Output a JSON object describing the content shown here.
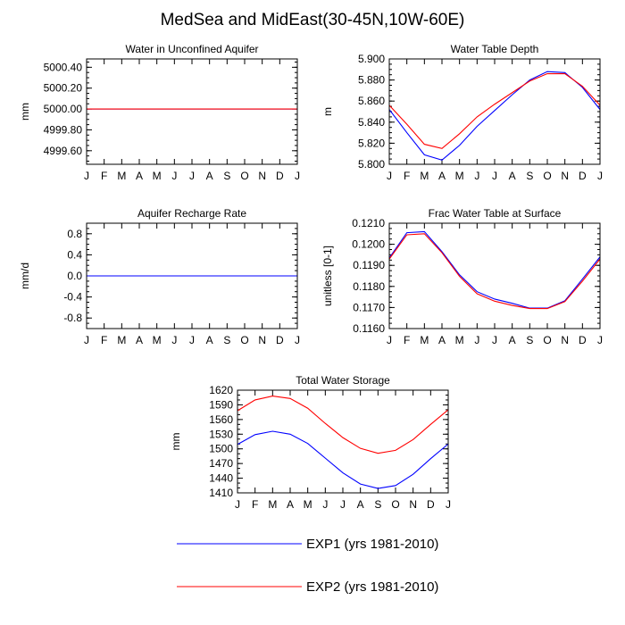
{
  "title": "MedSea and MidEast(30-45N,10W-60E)",
  "colors": {
    "exp1": "#0000ff",
    "exp2": "#ff0000"
  },
  "legend": [
    {
      "label": "EXP1 (yrs 1981-2010)",
      "color": "#0000ff"
    },
    {
      "label": "EXP2 (yrs 1981-2010)",
      "color": "#ff0000"
    }
  ],
  "chart_data": [
    {
      "type": "line",
      "title": "Water in Unconfined Aquifer",
      "ylabel": "mm",
      "xlabel": "",
      "categories": [
        "J",
        "F",
        "M",
        "A",
        "M",
        "J",
        "J",
        "A",
        "S",
        "O",
        "N",
        "D",
        "J"
      ],
      "ylim": [
        4999.47,
        5000.48
      ],
      "yticks": [
        4999.6,
        4999.8,
        5000.0,
        5000.2,
        5000.4
      ],
      "ytick_labels": [
        "4999.60",
        "4999.80",
        "5000.00",
        "5000.20",
        "5000.40"
      ],
      "yminor_step": 0.05,
      "series": [
        {
          "values": [
            5000,
            5000,
            5000,
            5000,
            5000,
            5000,
            5000,
            5000,
            5000,
            5000,
            5000,
            5000,
            5000
          ],
          "color": "#0000ff"
        },
        {
          "values": [
            5000,
            5000,
            5000,
            5000,
            5000,
            5000,
            5000,
            5000,
            5000,
            5000,
            5000,
            5000,
            5000
          ],
          "color": "#ff0000"
        }
      ]
    },
    {
      "type": "line",
      "title": "Water Table Depth",
      "ylabel": "m",
      "xlabel": "",
      "categories": [
        "J",
        "F",
        "M",
        "A",
        "M",
        "J",
        "J",
        "A",
        "S",
        "O",
        "N",
        "D",
        "J"
      ],
      "ylim": [
        5.8,
        5.9
      ],
      "yticks": [
        5.8,
        5.82,
        5.84,
        5.86,
        5.88,
        5.9
      ],
      "ytick_labels": [
        "5.800",
        "5.820",
        "5.840",
        "5.860",
        "5.880",
        "5.900"
      ],
      "yminor_step": 0.005,
      "series": [
        {
          "values": [
            5.852,
            5.83,
            5.809,
            5.804,
            5.818,
            5.836,
            5.851,
            5.866,
            5.88,
            5.888,
            5.887,
            5.873,
            5.852
          ],
          "color": "#0000ff"
        },
        {
          "values": [
            5.856,
            5.838,
            5.819,
            5.815,
            5.829,
            5.845,
            5.857,
            5.868,
            5.879,
            5.886,
            5.886,
            5.874,
            5.856
          ],
          "color": "#ff0000"
        }
      ]
    },
    {
      "type": "line",
      "title": "Aquifer Recharge Rate",
      "ylabel": "mm/d",
      "xlabel": "",
      "categories": [
        "J",
        "F",
        "M",
        "A",
        "M",
        "J",
        "J",
        "A",
        "S",
        "O",
        "N",
        "D",
        "J"
      ],
      "ylim": [
        -1.0,
        1.0
      ],
      "yticks": [
        -0.8,
        -0.4,
        0.0,
        0.4,
        0.8
      ],
      "ytick_labels": [
        "-0.8",
        "-0.4",
        "0.0",
        "0.4",
        "0.8"
      ],
      "yminor_step": 0.1,
      "series": [
        {
          "values": [
            0,
            0,
            0,
            0,
            0,
            0,
            0,
            0,
            0,
            0,
            0,
            0,
            0
          ],
          "color": "#ff0000"
        },
        {
          "values": [
            0,
            0,
            0,
            0,
            0,
            0,
            0,
            0,
            0,
            0,
            0,
            0,
            0
          ],
          "color": "#0000ff"
        }
      ]
    },
    {
      "type": "line",
      "title": "Frac Water Table at Surface",
      "ylabel": "unitless [0-1]",
      "xlabel": "",
      "categories": [
        "J",
        "F",
        "M",
        "A",
        "M",
        "J",
        "J",
        "A",
        "S",
        "O",
        "N",
        "D",
        "J"
      ],
      "ylim": [
        0.116,
        0.121
      ],
      "yticks": [
        0.116,
        0.117,
        0.118,
        0.119,
        0.12,
        0.121
      ],
      "ytick_labels": [
        "0.1160",
        "0.1170",
        "0.1180",
        "0.1190",
        "0.1200",
        "0.1210"
      ],
      "yminor_step": 0.00025,
      "series": [
        {
          "values": [
            0.11935,
            0.12055,
            0.1206,
            0.11965,
            0.11855,
            0.11775,
            0.1174,
            0.1172,
            0.11697,
            0.11697,
            0.11732,
            0.11835,
            0.1194
          ],
          "color": "#0000ff"
        },
        {
          "values": [
            0.1193,
            0.12045,
            0.1205,
            0.1196,
            0.11848,
            0.11765,
            0.1173,
            0.1171,
            0.11695,
            0.11695,
            0.11728,
            0.11825,
            0.1193
          ],
          "color": "#ff0000"
        }
      ]
    },
    {
      "type": "line",
      "title": "Total Water Storage",
      "ylabel": "mm",
      "xlabel": "",
      "categories": [
        "J",
        "F",
        "M",
        "A",
        "M",
        "J",
        "J",
        "A",
        "S",
        "O",
        "N",
        "D",
        "J"
      ],
      "ylim": [
        1410,
        1620
      ],
      "yticks": [
        1410,
        1440,
        1470,
        1500,
        1530,
        1560,
        1590,
        1620
      ],
      "ytick_labels": [
        "1410",
        "1440",
        "1470",
        "1500",
        "1530",
        "1560",
        "1590",
        "1620"
      ],
      "yminor_step": 10,
      "series": [
        {
          "values": [
            1509,
            1529,
            1536,
            1530,
            1511,
            1481,
            1451,
            1428,
            1419,
            1425,
            1448,
            1480,
            1510
          ],
          "color": "#0000ff"
        },
        {
          "values": [
            1578,
            1600,
            1608,
            1603,
            1583,
            1552,
            1523,
            1501,
            1491,
            1497,
            1519,
            1550,
            1580
          ],
          "color": "#ff0000"
        }
      ]
    }
  ]
}
